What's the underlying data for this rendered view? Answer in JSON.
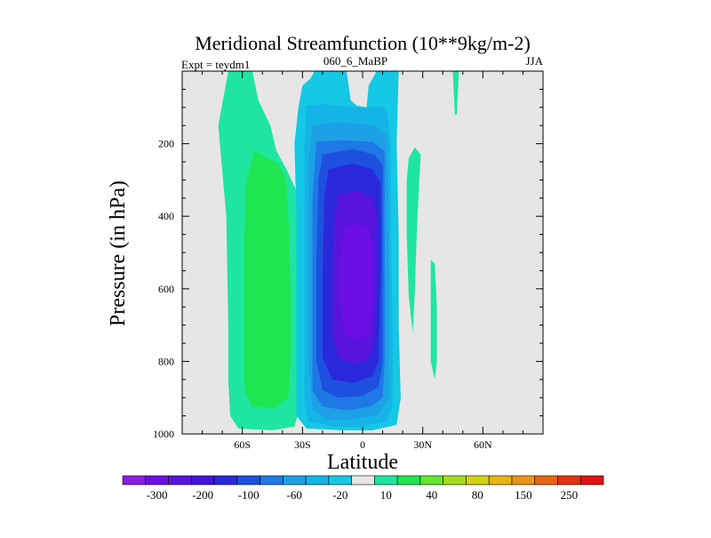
{
  "chart_data": {
    "type": "heatmap",
    "title": "Meridional Streamfunction (10**9kg/m-2)",
    "left_label": "Expt = teydm1",
    "center_label": "060_6_MaBP",
    "right_label": "JJA",
    "xlabel": "Latitude",
    "ylabel": "Pressure (in hPa)",
    "xlim": [
      -90,
      90
    ],
    "ylim": [
      1000,
      0
    ],
    "x_ticks": [
      {
        "value": -60,
        "label": "60S"
      },
      {
        "value": -30,
        "label": "30S"
      },
      {
        "value": 0,
        "label": "0"
      },
      {
        "value": 30,
        "label": "30N"
      },
      {
        "value": 60,
        "label": "60N"
      }
    ],
    "y_ticks": [
      {
        "value": 200,
        "label": "200"
      },
      {
        "value": 400,
        "label": "400"
      },
      {
        "value": 600,
        "label": "600"
      },
      {
        "value": 800,
        "label": "800"
      },
      {
        "value": 1000,
        "label": "1000"
      }
    ],
    "no_data_color": "#e6e6e6",
    "colorbar": {
      "colors": [
        "#8a1ee3",
        "#6e0ee6",
        "#5a14e0",
        "#4214dc",
        "#2a28dc",
        "#1e50e0",
        "#1e78e6",
        "#1ea0e6",
        "#14b4e6",
        "#14c8e6",
        "#e6e6e6",
        "#1ee6a0",
        "#1ee650",
        "#64e632",
        "#a0dc1e",
        "#d2d214",
        "#e6b414",
        "#e69614",
        "#e66414",
        "#e63214",
        "#e01414"
      ],
      "labels": [
        {
          "index": 1,
          "label": "-300"
        },
        {
          "index": 3,
          "label": "-200"
        },
        {
          "index": 5,
          "label": "-100"
        },
        {
          "index": 7,
          "label": "-60"
        },
        {
          "index": 9,
          "label": "-20"
        },
        {
          "index": 11,
          "label": "10"
        },
        {
          "index": 13,
          "label": "40"
        },
        {
          "index": 15,
          "label": "80"
        },
        {
          "index": 17,
          "label": "150"
        },
        {
          "index": 19,
          "label": "250"
        }
      ]
    },
    "regions": [
      {
        "name": "sh-cell-outer",
        "value": 10,
        "color": "#1ee6a0",
        "polygon": [
          [
            -67,
            0
          ],
          [
            -55,
            0
          ],
          [
            -52,
            80
          ],
          [
            -46,
            150
          ],
          [
            -43,
            220
          ],
          [
            -38,
            270
          ],
          [
            -33,
            330
          ],
          [
            -32,
            450
          ],
          [
            -31,
            600
          ],
          [
            -31,
            800
          ],
          [
            -31,
            920
          ],
          [
            -34,
            980
          ],
          [
            -45,
            990
          ],
          [
            -62,
            985
          ],
          [
            -66,
            950
          ],
          [
            -67,
            860
          ],
          [
            -67,
            700
          ],
          [
            -68,
            400
          ],
          [
            -72,
            150
          ],
          [
            -67,
            0
          ]
        ]
      },
      {
        "name": "sh-cell-inner",
        "value": 40,
        "color": "#1ee650",
        "polygon": [
          [
            -54,
            220
          ],
          [
            -49,
            235
          ],
          [
            -42,
            255
          ],
          [
            -38,
            300
          ],
          [
            -37,
            400
          ],
          [
            -36,
            600
          ],
          [
            -36,
            800
          ],
          [
            -37,
            900
          ],
          [
            -44,
            930
          ],
          [
            -55,
            925
          ],
          [
            -59,
            880
          ],
          [
            -59,
            700
          ],
          [
            -59,
            450
          ],
          [
            -58,
            300
          ],
          [
            -54,
            220
          ]
        ]
      },
      {
        "name": "nh-strip-a",
        "value": 10,
        "color": "#1ee6a0",
        "polygon": [
          [
            23,
            240
          ],
          [
            26,
            210
          ],
          [
            29,
            230
          ],
          [
            28,
            330
          ],
          [
            27,
            450
          ],
          [
            26,
            620
          ],
          [
            25,
            720
          ],
          [
            23,
            620
          ],
          [
            22,
            450
          ],
          [
            22,
            300
          ],
          [
            23,
            240
          ]
        ]
      },
      {
        "name": "nh-strip-b",
        "value": 10,
        "color": "#1ee6a0",
        "polygon": [
          [
            34,
            520
          ],
          [
            36,
            530
          ],
          [
            37,
            650
          ],
          [
            37,
            800
          ],
          [
            36,
            850
          ],
          [
            34,
            800
          ],
          [
            34,
            650
          ],
          [
            34,
            520
          ]
        ]
      },
      {
        "name": "nh-strip-c",
        "value": 10,
        "color": "#1ee6a0",
        "polygon": [
          [
            45,
            0
          ],
          [
            48,
            0
          ],
          [
            47,
            120
          ],
          [
            46,
            120
          ],
          [
            45,
            0
          ]
        ]
      },
      {
        "name": "tropical-cell-l1",
        "value": -20,
        "color": "#14c8e6",
        "polygon": [
          [
            -32,
            100
          ],
          [
            -30,
            40
          ],
          [
            -26,
            20
          ],
          [
            -24,
            0
          ],
          [
            -8,
            0
          ],
          [
            -6,
            80
          ],
          [
            -3,
            95
          ],
          [
            2,
            100
          ],
          [
            3,
            40
          ],
          [
            7,
            0
          ],
          [
            18,
            0
          ],
          [
            17,
            200
          ],
          [
            18,
            450
          ],
          [
            18,
            700
          ],
          [
            19,
            900
          ],
          [
            17,
            975
          ],
          [
            5,
            990
          ],
          [
            -10,
            990
          ],
          [
            -28,
            985
          ],
          [
            -33,
            950
          ],
          [
            -33,
            700
          ],
          [
            -33,
            400
          ],
          [
            -34,
            200
          ],
          [
            -32,
            100
          ]
        ]
      },
      {
        "name": "tropical-cell-l2",
        "value": -60,
        "color": "#14b4e6",
        "polygon": [
          [
            -28,
            95
          ],
          [
            -20,
            90
          ],
          [
            -10,
            97
          ],
          [
            0,
            100
          ],
          [
            8,
            98
          ],
          [
            12,
            105
          ],
          [
            14,
            200
          ],
          [
            14,
            450
          ],
          [
            15,
            700
          ],
          [
            15,
            920
          ],
          [
            12,
            965
          ],
          [
            0,
            980
          ],
          [
            -15,
            980
          ],
          [
            -27,
            965
          ],
          [
            -29,
            920
          ],
          [
            -29,
            700
          ],
          [
            -29,
            400
          ],
          [
            -29,
            200
          ],
          [
            -28,
            95
          ]
        ]
      },
      {
        "name": "tropical-cell-l3",
        "value": -100,
        "color": "#1ea0e6",
        "polygon": [
          [
            -25,
            150
          ],
          [
            -10,
            140
          ],
          [
            5,
            150
          ],
          [
            12,
            175
          ],
          [
            13,
            350
          ],
          [
            13,
            700
          ],
          [
            13,
            900
          ],
          [
            8,
            945
          ],
          [
            -5,
            960
          ],
          [
            -18,
            960
          ],
          [
            -25,
            930
          ],
          [
            -27,
            800
          ],
          [
            -27,
            500
          ],
          [
            -27,
            250
          ],
          [
            -25,
            150
          ]
        ]
      },
      {
        "name": "tropical-cell-l4",
        "value": -150,
        "color": "#1e78e6",
        "polygon": [
          [
            -23,
            195
          ],
          [
            -10,
            190
          ],
          [
            5,
            195
          ],
          [
            11,
            220
          ],
          [
            11,
            500
          ],
          [
            11,
            800
          ],
          [
            10,
            900
          ],
          [
            4,
            925
          ],
          [
            -8,
            935
          ],
          [
            -20,
            925
          ],
          [
            -25,
            880
          ],
          [
            -25,
            600
          ],
          [
            -25,
            350
          ],
          [
            -23,
            195
          ]
        ]
      },
      {
        "name": "tropical-cell-l5",
        "value": -200,
        "color": "#1e50e0",
        "polygon": [
          [
            -20,
            230
          ],
          [
            -5,
            215
          ],
          [
            6,
            230
          ],
          [
            10,
            260
          ],
          [
            10,
            500
          ],
          [
            10,
            800
          ],
          [
            8,
            870
          ],
          [
            0,
            895
          ],
          [
            -12,
            900
          ],
          [
            -20,
            880
          ],
          [
            -23,
            800
          ],
          [
            -23,
            500
          ],
          [
            -22,
            300
          ],
          [
            -20,
            230
          ]
        ]
      },
      {
        "name": "tropical-cell-l6",
        "value": -250,
        "color": "#2a28dc",
        "polygon": [
          [
            -17,
            270
          ],
          [
            -5,
            255
          ],
          [
            5,
            270
          ],
          [
            9,
            310
          ],
          [
            9,
            560
          ],
          [
            8,
            800
          ],
          [
            5,
            840
          ],
          [
            -5,
            860
          ],
          [
            -15,
            850
          ],
          [
            -20,
            790
          ],
          [
            -20,
            550
          ],
          [
            -19,
            340
          ],
          [
            -17,
            270
          ]
        ]
      },
      {
        "name": "tropical-cell-l7",
        "value": -300,
        "color": "#5a14e0",
        "polygon": [
          [
            -12,
            340
          ],
          [
            -2,
            330
          ],
          [
            5,
            350
          ],
          [
            7,
            400
          ],
          [
            7,
            600
          ],
          [
            6,
            750
          ],
          [
            2,
            800
          ],
          [
            -5,
            805
          ],
          [
            -12,
            790
          ],
          [
            -15,
            720
          ],
          [
            -15,
            550
          ],
          [
            -14,
            420
          ],
          [
            -12,
            340
          ]
        ]
      },
      {
        "name": "tropical-cell-l8",
        "value": -350,
        "color": "#6e0ee6",
        "polygon": [
          [
            -9,
            430
          ],
          [
            -2,
            420
          ],
          [
            3,
            440
          ],
          [
            5,
            500
          ],
          [
            5,
            650
          ],
          [
            3,
            720
          ],
          [
            -3,
            740
          ],
          [
            -9,
            725
          ],
          [
            -11,
            640
          ],
          [
            -11,
            520
          ],
          [
            -9,
            430
          ]
        ]
      }
    ]
  }
}
